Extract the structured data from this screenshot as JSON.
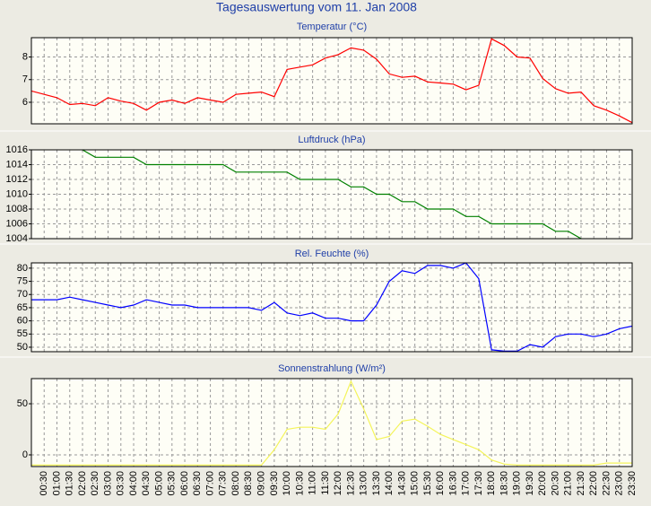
{
  "title": "Tagesauswertung vom 11. Jan 2008",
  "chart_data": [
    {
      "type": "line",
      "title": "Temperatur (°C)",
      "color": "#ff0000",
      "values": [
        6.5,
        6.35,
        6.2,
        5.9,
        5.95,
        5.85,
        6.2,
        6.05,
        5.95,
        5.65,
        6.0,
        6.1,
        5.95,
        6.2,
        6.1,
        6.0,
        6.35,
        6.4,
        6.45,
        6.25,
        7.45,
        7.55,
        7.65,
        7.95,
        8.1,
        8.4,
        8.3,
        7.9,
        7.25,
        7.1,
        7.15,
        6.9,
        6.85,
        6.8,
        6.55,
        6.75,
        8.8,
        8.5,
        8.0,
        7.95,
        7.05,
        6.6,
        6.4,
        6.45,
        5.85,
        5.65,
        5.4,
        5.1
      ],
      "ylim": [
        5.05,
        8.85
      ],
      "yticks": [
        6,
        7,
        8
      ],
      "grid": true
    },
    {
      "type": "line",
      "title": "Luftdruck (hPa)",
      "color": "#008000",
      "values": [
        null,
        null,
        null,
        null,
        1016,
        1015,
        1015,
        1015,
        1015,
        1014,
        1014,
        1014,
        1014,
        1014,
        1014,
        1014,
        1013,
        1013,
        1013,
        1013,
        1013,
        1012,
        1012,
        1012,
        1012,
        1011,
        1011,
        1010,
        1010,
        1009,
        1009,
        1008,
        1008,
        1008,
        1007,
        1007,
        1006,
        1006,
        1006,
        1006,
        1006,
        1005,
        1005,
        1004,
        null,
        null,
        null,
        null
      ],
      "ylim": [
        1004,
        1016
      ],
      "yticks": [
        1004,
        1006,
        1008,
        1010,
        1012,
        1014,
        1016
      ],
      "grid": true
    },
    {
      "type": "line",
      "title": "Rel. Feuchte (%)",
      "color": "#0000ff",
      "values": [
        68,
        68,
        68,
        69,
        68,
        67,
        66,
        65,
        66,
        68,
        67,
        66,
        66,
        65,
        65,
        65,
        65,
        65,
        64,
        67,
        63,
        62,
        63,
        61,
        61,
        60,
        60,
        66,
        75,
        79,
        78,
        81,
        81,
        80,
        82,
        76,
        49,
        48.5,
        48.5,
        51,
        50,
        54,
        55,
        55,
        54,
        55,
        57,
        58
      ],
      "ylim": [
        48.3,
        82
      ],
      "yticks": [
        50,
        55,
        60,
        65,
        70,
        75,
        80
      ],
      "grid": true
    },
    {
      "type": "line",
      "title": "Sonnenstrahlung (W/m²)",
      "color": "#f4f45a",
      "values": [
        -10,
        -10,
        -10,
        -10,
        -10,
        -10,
        -10,
        -10,
        -10,
        -10,
        -10,
        -10,
        -10,
        -10,
        -10,
        -10,
        -10,
        -10,
        -10,
        5,
        25,
        27,
        27,
        25,
        40,
        72,
        45,
        15,
        18,
        33,
        35,
        28,
        20,
        15,
        10,
        5,
        -5,
        -9,
        -10,
        -10,
        -10,
        -10,
        -10,
        -10,
        -10,
        -8,
        -8,
        -8
      ],
      "ylim": [
        -11.4,
        74.6
      ],
      "yticks": [
        0,
        50
      ],
      "grid": true,
      "categories": [
        null,
        "00:30",
        "01:00",
        "01:30",
        "02:00",
        "02:30",
        "03:00",
        "03:30",
        "04:00",
        "04:30",
        "05:00",
        "05:30",
        "06:00",
        "06:30",
        "07:00",
        "07:30",
        "08:00",
        "08:30",
        "09:00",
        "09:30",
        "10:00",
        "10:30",
        "11:00",
        "11:30",
        "12:00",
        "12:30",
        "13:00",
        "13:30",
        "14:00",
        "14:30",
        "15:00",
        "15:30",
        "16:00",
        "16:30",
        "17:00",
        "17:30",
        "18:00",
        "18:30",
        "19:00",
        "19:30",
        "20:00",
        "20:30",
        "21:00",
        "21:30",
        "22:00",
        "22:30",
        "23:00",
        "23:30"
      ]
    }
  ]
}
